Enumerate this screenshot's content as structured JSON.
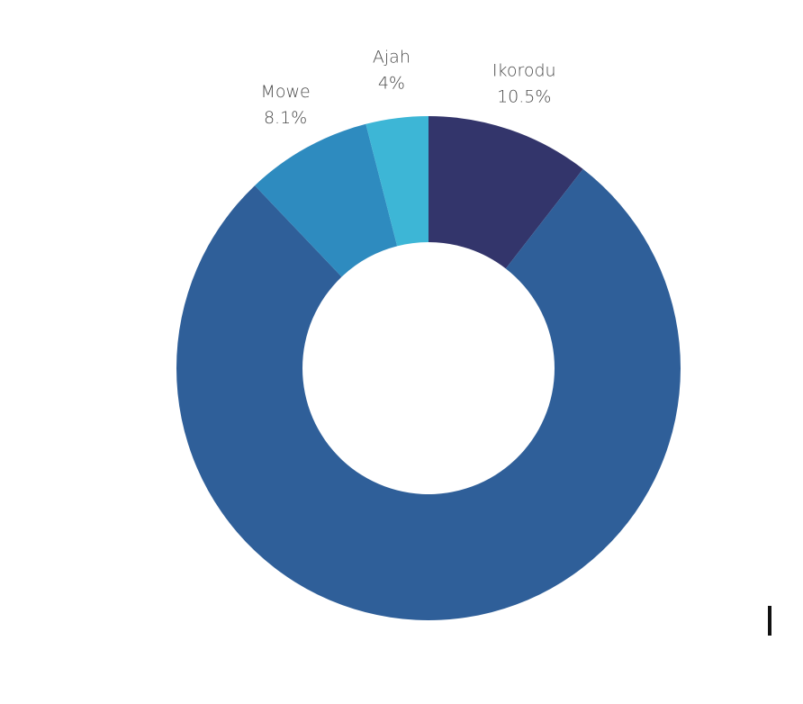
{
  "chart_data": {
    "type": "pie",
    "donut": true,
    "title": "",
    "categories": [
      "Ikorodu",
      "",
      "Mowe",
      "Ajah"
    ],
    "values": [
      10.5,
      77.4,
      8.1,
      4.0
    ],
    "value_labels": [
      "10.5%",
      "",
      "8.1%",
      "4%"
    ],
    "colors": [
      "#33356b",
      "#2f5f99",
      "#2e8bbf",
      "#3db6d6"
    ],
    "start_angle_deg": 0,
    "direction": "clockwise",
    "legend": "none"
  }
}
